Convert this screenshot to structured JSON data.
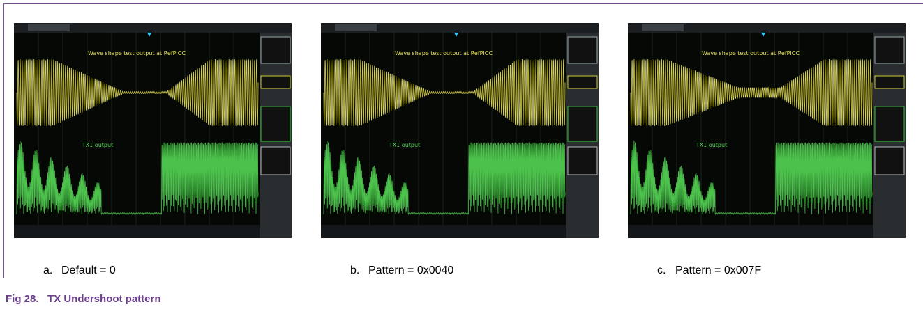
{
  "figure": {
    "title": "Fig 28.   TX Undershoot pattern",
    "panels": [
      {
        "label": "a.",
        "caption": "Default = 0",
        "scope_title": "Wave shape test output at RefPICC",
        "scope_channel": "TX1 output"
      },
      {
        "label": "b.",
        "caption": "Pattern = 0x0040",
        "scope_title": "Wave shape test output at RefPICC",
        "scope_channel": "TX1 output"
      },
      {
        "label": "c.",
        "caption": "Pattern = 0x007F",
        "scope_title": "Wave shape test output at RefPICC",
        "scope_channel": "TX1 output"
      }
    ]
  }
}
